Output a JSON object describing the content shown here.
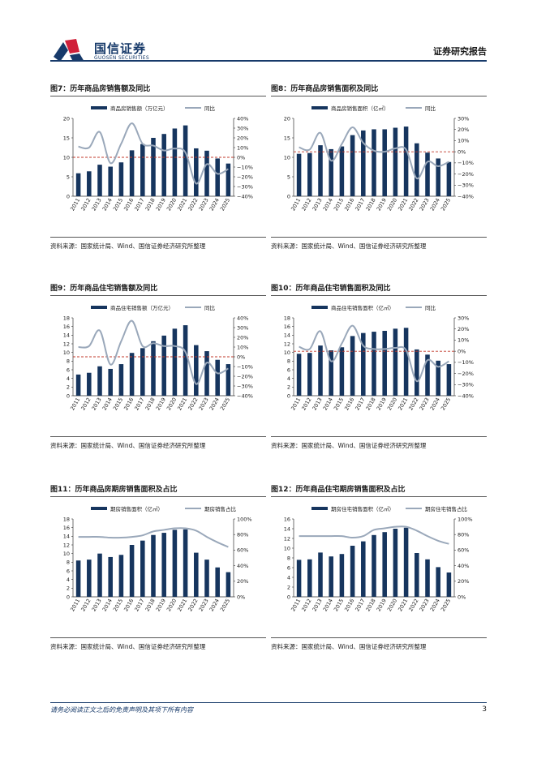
{
  "header": {
    "logo_cn": "国信证券",
    "logo_en": "GUOSEN SECURITIES",
    "report_type": "证券研究报告"
  },
  "colors": {
    "bar": "#16355e",
    "line": "#9aa8ba",
    "ref": "#c0392b",
    "brand": "#173a6a",
    "logo_red": "#d0203a"
  },
  "footer": {
    "disclaimer": "请务必阅读正文之后的免责声明及其项下所有内容",
    "page": "3"
  },
  "figures": [
    {
      "title": "图7：历年商品房销售额及同比",
      "source": "资料来源：国家统计局、Wind、国信证券经济研究所整理",
      "chart_data": {
        "type": "bar+line",
        "categories": [
          "2011",
          "2012",
          "2013",
          "2014",
          "2015",
          "2016",
          "2017",
          "2018",
          "2019",
          "2020",
          "2021",
          "2022",
          "2023",
          "2024",
          "2025"
        ],
        "bar_name": "商品房销售额（万亿元）",
        "bar_values": [
          5.9,
          6.4,
          8.1,
          7.6,
          8.7,
          11.8,
          13.4,
          15.0,
          16.0,
          17.4,
          18.2,
          12.3,
          11.7,
          9.7,
          8.4
        ],
        "line_name": "同比",
        "line_values": [
          11,
          10,
          26,
          -6,
          14,
          35,
          14,
          12,
          7,
          9,
          5,
          -27,
          -7,
          -17,
          -12
        ],
        "left_axis": {
          "min": 0,
          "max": 20,
          "ticks": [
            "0",
            "5",
            "10",
            "15",
            "20"
          ]
        },
        "right_axis": {
          "min": -40,
          "max": 40,
          "ticks": [
            "−40%",
            "−30%",
            "−20%",
            "−10%",
            "0%",
            "10%",
            "20%",
            "30%",
            "40%"
          ]
        },
        "ref_line": 0
      }
    },
    {
      "title": "图8：历年商品房销售面积及同比",
      "source": "资料来源：国家统计局、Wind、国信证券经济研究所整理",
      "chart_data": {
        "type": "bar+line",
        "categories": [
          "2011",
          "2012",
          "2013",
          "2014",
          "2015",
          "2016",
          "2017",
          "2018",
          "2019",
          "2020",
          "2021",
          "2022",
          "2023",
          "2024",
          "2025"
        ],
        "bar_name": "商品房销售面积（亿㎡）",
        "bar_values": [
          10.9,
          11.1,
          13.1,
          12.1,
          12.8,
          15.7,
          16.9,
          17.2,
          17.2,
          17.6,
          17.9,
          13.6,
          11.2,
          9.7,
          8.8
        ],
        "line_name": "同比",
        "line_values": [
          4,
          2,
          17,
          -8,
          7,
          22,
          8,
          1,
          0,
          3,
          2,
          -24,
          -9,
          -13,
          -9
        ],
        "left_axis": {
          "min": 0,
          "max": 20,
          "ticks": [
            "0",
            "5",
            "10",
            "15",
            "20"
          ]
        },
        "right_axis": {
          "min": -40,
          "max": 30,
          "ticks": [
            "−40%",
            "−30%",
            "−20%",
            "−10%",
            "0%",
            "10%",
            "20%",
            "30%"
          ]
        },
        "ref_line": 0
      }
    },
    {
      "title": "图9：历年商品住宅销售额及同比",
      "source": "资料来源：国家统计局、Wind、国信证券经济研究所整理",
      "chart_data": {
        "type": "bar+line",
        "categories": [
          "2011",
          "2012",
          "2013",
          "2014",
          "2015",
          "2016",
          "2017",
          "2018",
          "2019",
          "2020",
          "2021",
          "2022",
          "2023",
          "2024",
          "2025"
        ],
        "bar_name": "商品住宅销售额（万亿元）",
        "bar_values": [
          4.9,
          5.3,
          6.8,
          6.2,
          7.3,
          9.9,
          11.0,
          12.6,
          13.9,
          15.5,
          16.3,
          11.7,
          10.3,
          8.3,
          7.3
        ],
        "line_name": "同比",
        "line_values": [
          10,
          11,
          27,
          -8,
          16,
          37,
          11,
          14,
          11,
          11,
          5,
          -28,
          -6,
          -17,
          -12
        ],
        "left_axis": {
          "min": 0,
          "max": 18,
          "ticks": [
            "0",
            "2",
            "4",
            "6",
            "8",
            "10",
            "12",
            "14",
            "16",
            "18"
          ]
        },
        "right_axis": {
          "min": -40,
          "max": 40,
          "ticks": [
            "−40%",
            "−30%",
            "−20%",
            "−10%",
            "0%",
            "10%",
            "20%",
            "30%",
            "40%"
          ]
        },
        "ref_line": 0
      }
    },
    {
      "title": "图10：历年商品住宅销售面积及同比",
      "source": "资料来源：国家统计局、Wind、国信证券经济研究所整理",
      "chart_data": {
        "type": "bar+line",
        "categories": [
          "2011",
          "2012",
          "2013",
          "2014",
          "2015",
          "2016",
          "2017",
          "2018",
          "2019",
          "2020",
          "2021",
          "2022",
          "2023",
          "2024",
          "2025"
        ],
        "bar_name": "商品住宅销售面积（亿㎡）",
        "bar_values": [
          9.7,
          9.9,
          11.6,
          10.5,
          11.2,
          13.8,
          14.5,
          14.8,
          15.0,
          15.5,
          15.7,
          10.7,
          9.5,
          8.1,
          7.3
        ],
        "line_name": "同比",
        "line_values": [
          4,
          2,
          18,
          -9,
          7,
          23,
          5,
          2,
          2,
          3,
          1,
          -27,
          -8,
          -14,
          -9
        ],
        "left_axis": {
          "min": 0,
          "max": 18,
          "ticks": [
            "0",
            "2",
            "4",
            "6",
            "8",
            "10",
            "12",
            "14",
            "16",
            "18"
          ]
        },
        "right_axis": {
          "min": -40,
          "max": 30,
          "ticks": [
            "−40%",
            "−30%",
            "−20%",
            "−10%",
            "0%",
            "10%",
            "20%",
            "30%"
          ]
        },
        "ref_line": 0
      }
    },
    {
      "title": "图11：历年商品房期房销售面积及占比",
      "source": "资料来源：国家统计局、Wind、国信证券经济研究所整理",
      "chart_data": {
        "type": "bar+line",
        "categories": [
          "2011",
          "2012",
          "2013",
          "2014",
          "2015",
          "2016",
          "2017",
          "2018",
          "2019",
          "2020",
          "2021",
          "2022",
          "2023",
          "2024",
          "2025"
        ],
        "bar_name": "期房销售面积（亿㎡）",
        "bar_values": [
          8.4,
          8.6,
          10.0,
          9.2,
          9.7,
          12.0,
          13.0,
          14.3,
          14.8,
          15.5,
          15.6,
          10.2,
          8.6,
          6.8,
          5.7
        ],
        "line_name": "期房销售占比",
        "line_values": [
          77,
          77,
          77,
          76,
          76,
          77,
          79,
          84,
          86,
          88,
          88,
          85,
          77,
          70,
          64
        ],
        "left_axis": {
          "min": 0,
          "max": 18,
          "ticks": [
            "0",
            "2",
            "4",
            "6",
            "8",
            "10",
            "12",
            "14",
            "16",
            "18"
          ]
        },
        "right_axis": {
          "min": 0,
          "max": 100,
          "ticks": [
            "0%",
            "20%",
            "40%",
            "60%",
            "80%",
            "100%"
          ]
        }
      }
    },
    {
      "title": "图12：历年商品住宅期房销售面积及占比",
      "source": "资料来源：国家统计局、Wind、国信证券经济研究所整理",
      "chart_data": {
        "type": "bar+line",
        "categories": [
          "2011",
          "2012",
          "2013",
          "2014",
          "2015",
          "2016",
          "2017",
          "2018",
          "2019",
          "2020",
          "2021",
          "2022",
          "2023",
          "2024",
          "2025"
        ],
        "bar_name": "期房住宅销售面积（亿㎡）",
        "bar_values": [
          7.6,
          7.7,
          9.1,
          8.3,
          8.8,
          10.5,
          11.4,
          12.7,
          13.3,
          14.0,
          14.2,
          9.0,
          7.7,
          6.1,
          5.0
        ],
        "line_name": "期房住宅销售占比",
        "line_values": [
          78,
          78,
          78,
          78,
          78,
          76,
          78,
          86,
          88,
          90,
          90,
          85,
          78,
          72,
          68
        ],
        "left_axis": {
          "min": 0,
          "max": 16,
          "ticks": [
            "0",
            "2",
            "4",
            "6",
            "8",
            "10",
            "12",
            "14",
            "16"
          ]
        },
        "right_axis": {
          "min": 0,
          "max": 100,
          "ticks": [
            "0%",
            "20%",
            "40%",
            "60%",
            "80%",
            "100%"
          ]
        }
      }
    }
  ]
}
